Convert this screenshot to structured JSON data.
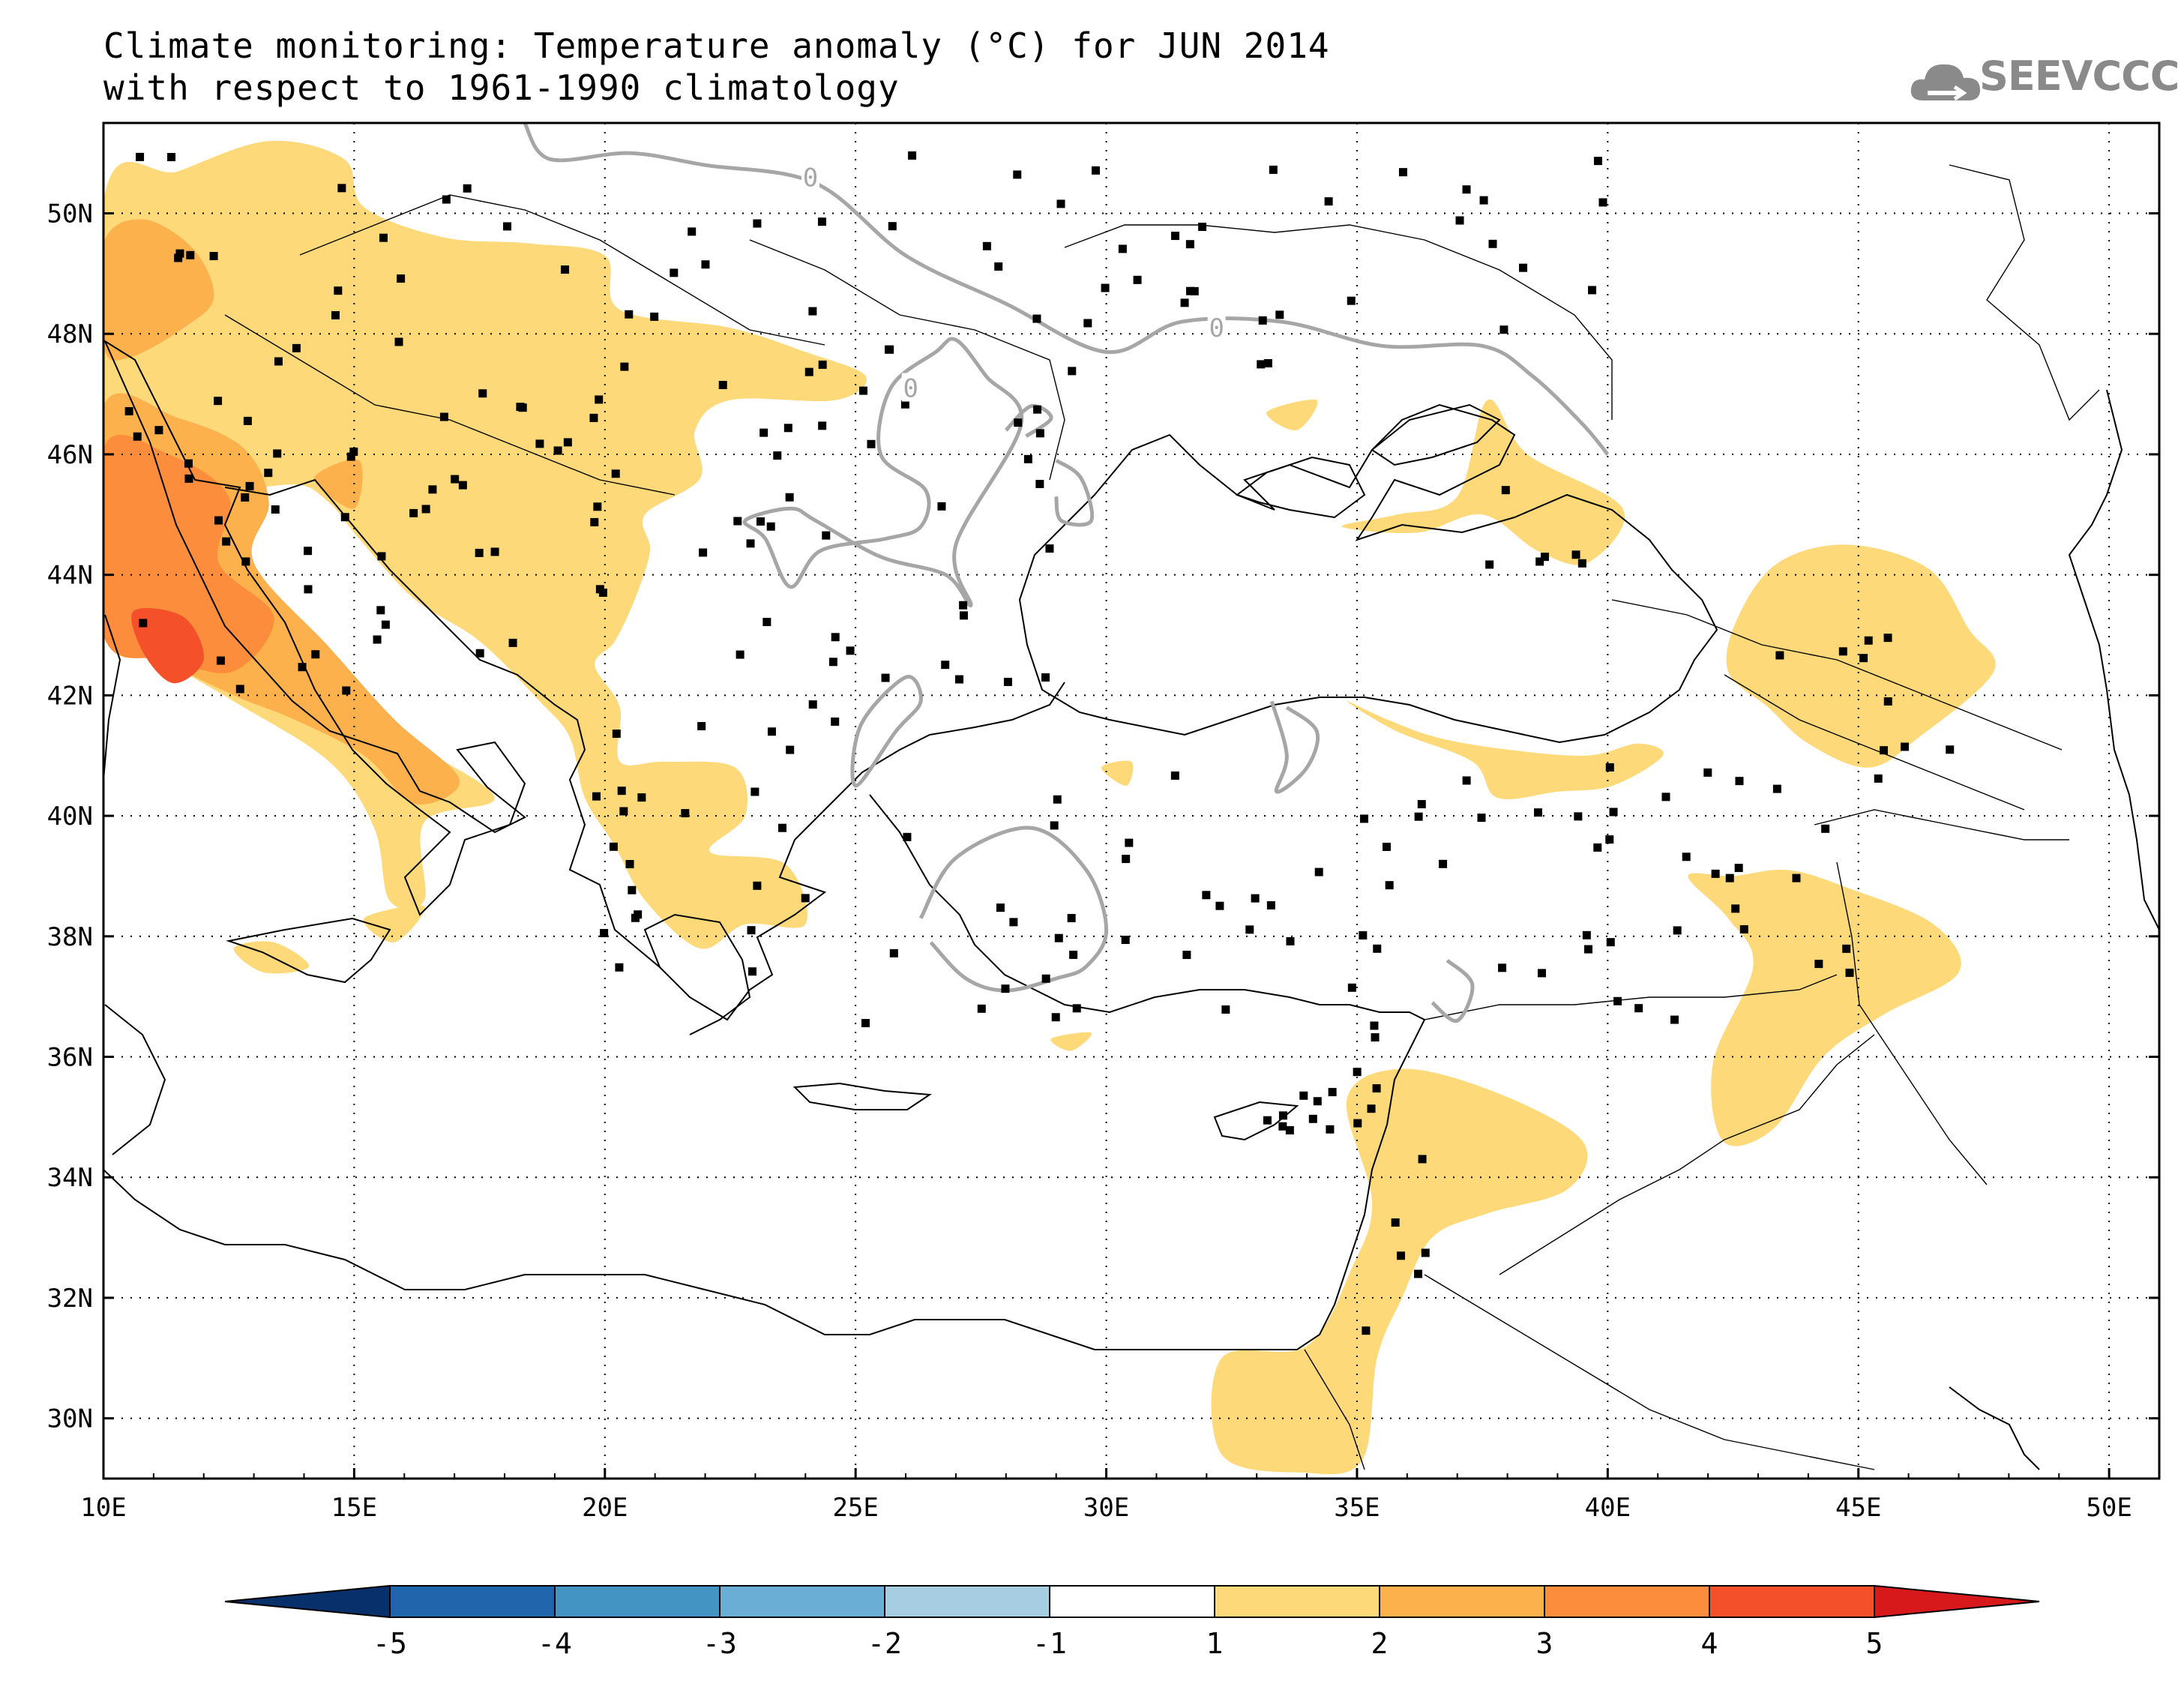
{
  "title": {
    "line1": "Climate monitoring: Temperature anomaly (°C) for JUN 2014",
    "line2": "with respect to 1961-1990 climatology"
  },
  "logo": {
    "text": "SEEVCCC",
    "icon": "cloud-icon",
    "color": "#8a8a8a"
  },
  "map": {
    "lon_range": [
      10,
      51
    ],
    "lat_range": [
      29,
      51.5
    ],
    "lon_ticks": [
      {
        "value": 10,
        "label": "10E"
      },
      {
        "value": 15,
        "label": "15E"
      },
      {
        "value": 20,
        "label": "20E"
      },
      {
        "value": 25,
        "label": "25E"
      },
      {
        "value": 30,
        "label": "30E"
      },
      {
        "value": 35,
        "label": "35E"
      },
      {
        "value": 40,
        "label": "40E"
      },
      {
        "value": 45,
        "label": "45E"
      },
      {
        "value": 50,
        "label": "50E"
      }
    ],
    "lat_ticks": [
      {
        "value": 30,
        "label": "30N"
      },
      {
        "value": 32,
        "label": "32N"
      },
      {
        "value": 34,
        "label": "34N"
      },
      {
        "value": 36,
        "label": "36N"
      },
      {
        "value": 38,
        "label": "38N"
      },
      {
        "value": 40,
        "label": "40N"
      },
      {
        "value": 42,
        "label": "42N"
      },
      {
        "value": 44,
        "label": "44N"
      },
      {
        "value": 46,
        "label": "46N"
      },
      {
        "value": 48,
        "label": "48N"
      },
      {
        "value": 50,
        "label": "50N"
      }
    ],
    "grid": "dotted",
    "zero_contour_label": "0",
    "anomaly_regions": [
      {
        "level": 1,
        "points": [
          [
            10,
            50.2
          ],
          [
            11.5,
            50.7
          ],
          [
            13.3,
            51.2
          ],
          [
            14.8,
            50.9
          ],
          [
            15.2,
            50.1
          ],
          [
            16.8,
            49.6
          ],
          [
            18.5,
            49.5
          ],
          [
            20,
            49.3
          ],
          [
            20.3,
            48.4
          ],
          [
            22.5,
            48.1
          ],
          [
            24,
            47.7
          ],
          [
            25.2,
            47.3
          ],
          [
            24.6,
            46.9
          ],
          [
            22.5,
            46.9
          ],
          [
            21.8,
            46.4
          ],
          [
            21.9,
            45.6
          ],
          [
            20.8,
            45.0
          ],
          [
            20.9,
            44.4
          ],
          [
            20.6,
            43.6
          ],
          [
            20.2,
            42.9
          ],
          [
            19.8,
            42.5
          ],
          [
            20.3,
            41.8
          ],
          [
            20.3,
            40.9
          ],
          [
            21.2,
            40.9
          ],
          [
            22.6,
            40.8
          ],
          [
            22.8,
            40.0
          ],
          [
            22.1,
            39.4
          ],
          [
            23.6,
            39.2
          ],
          [
            24.0,
            38.2
          ],
          [
            22.8,
            38.2
          ],
          [
            21.9,
            37.8
          ],
          [
            20.8,
            38.6
          ],
          [
            20.2,
            39.5
          ],
          [
            19.6,
            40.3
          ],
          [
            19.3,
            41.3
          ],
          [
            18.7,
            41.9
          ],
          [
            17.5,
            42.9
          ],
          [
            16.2,
            43.6
          ],
          [
            15.1,
            44.6
          ],
          [
            14.5,
            45.2
          ],
          [
            13.8,
            45.5
          ],
          [
            12.4,
            45.2
          ],
          [
            12.3,
            44.2
          ],
          [
            13.9,
            43.3
          ],
          [
            14.9,
            42.0
          ],
          [
            16.2,
            41.2
          ],
          [
            17.8,
            40.3
          ],
          [
            16.4,
            39.9
          ],
          [
            16.4,
            38.6
          ],
          [
            15.7,
            38.6
          ],
          [
            15.4,
            39.8
          ],
          [
            14.5,
            40.9
          ],
          [
            12.6,
            41.9
          ],
          [
            11.2,
            42.6
          ],
          [
            10.0,
            43.4
          ]
        ]
      },
      {
        "level": 1,
        "points": [
          [
            12.6,
            37.8
          ],
          [
            13.4,
            37.9
          ],
          [
            14.1,
            37.5
          ],
          [
            13.2,
            37.4
          ]
        ]
      },
      {
        "level": 1,
        "points": [
          [
            15.2,
            38.3
          ],
          [
            16.4,
            38.5
          ],
          [
            15.8,
            37.9
          ]
        ]
      },
      {
        "level": 1,
        "points": [
          [
            33.2,
            46.7
          ],
          [
            34.2,
            46.9
          ],
          [
            33.8,
            46.4
          ]
        ]
      },
      {
        "level": 1,
        "points": [
          [
            34.7,
            44.8
          ],
          [
            35.8,
            45.0
          ],
          [
            37.0,
            45.3
          ],
          [
            37.6,
            46.9
          ],
          [
            38.4,
            46.0
          ],
          [
            40.3,
            45.1
          ],
          [
            39.6,
            44.2
          ],
          [
            38.6,
            44.4
          ],
          [
            37.5,
            45.0
          ],
          [
            36.2,
            44.7
          ]
        ]
      },
      {
        "level": 1,
        "points": [
          [
            34.8,
            41.9
          ],
          [
            35.8,
            41.4
          ],
          [
            37.3,
            40.9
          ],
          [
            37.8,
            40.3
          ],
          [
            39.0,
            40.4
          ],
          [
            40.1,
            40.5
          ],
          [
            41.1,
            41.0
          ],
          [
            40.6,
            41.2
          ],
          [
            39.6,
            41.0
          ],
          [
            38.0,
            41.1
          ],
          [
            36.6,
            41.3
          ],
          [
            35.6,
            41.6
          ]
        ]
      },
      {
        "level": 1,
        "points": [
          [
            42.6,
            43.3
          ],
          [
            43.4,
            44.2
          ],
          [
            44.8,
            44.5
          ],
          [
            46.4,
            44.1
          ],
          [
            47.2,
            43.1
          ],
          [
            47.7,
            42.4
          ],
          [
            46.2,
            41.3
          ],
          [
            45.2,
            40.8
          ],
          [
            44.0,
            41.2
          ],
          [
            43.2,
            41.8
          ],
          [
            42.4,
            42.4
          ]
        ]
      },
      {
        "level": 1,
        "points": [
          [
            41.6,
            39.0
          ],
          [
            42.5,
            39.0
          ],
          [
            43.6,
            39.1
          ],
          [
            44.8,
            38.8
          ],
          [
            46.5,
            38.2
          ],
          [
            47.0,
            37.4
          ],
          [
            45.5,
            36.7
          ],
          [
            44.3,
            36.0
          ],
          [
            43.3,
            34.8
          ],
          [
            42.3,
            34.6
          ],
          [
            42.1,
            35.9
          ],
          [
            42.9,
            37.5
          ],
          [
            42.4,
            38.3
          ]
        ]
      },
      {
        "level": 1,
        "points": [
          [
            34.8,
            35.3
          ],
          [
            35.9,
            35.8
          ],
          [
            37.8,
            35.4
          ],
          [
            39.5,
            34.6
          ],
          [
            39.2,
            33.8
          ],
          [
            37.6,
            33.4
          ],
          [
            36.5,
            33.0
          ],
          [
            35.9,
            32.0
          ],
          [
            35.4,
            31.0
          ],
          [
            35.1,
            29.3
          ],
          [
            33.9,
            29.1
          ],
          [
            32.3,
            29.4
          ],
          [
            32.3,
            31.0
          ],
          [
            34.0,
            31.2
          ],
          [
            34.9,
            32.5
          ],
          [
            35.3,
            33.6
          ]
        ]
      },
      {
        "level": 1,
        "points": [
          [
            29.9,
            40.8
          ],
          [
            30.5,
            40.9
          ],
          [
            30.4,
            40.5
          ]
        ]
      },
      {
        "level": 1,
        "points": [
          [
            28.9,
            36.3
          ],
          [
            29.7,
            36.4
          ],
          [
            29.3,
            36.1
          ]
        ]
      },
      {
        "level": 2,
        "points": [
          [
            10.0,
            49.5
          ],
          [
            10.8,
            49.9
          ],
          [
            11.8,
            49.4
          ],
          [
            12.2,
            48.6
          ],
          [
            11.6,
            48.1
          ],
          [
            10.5,
            47.6
          ],
          [
            10.0,
            47.8
          ]
        ]
      },
      {
        "level": 2,
        "points": [
          [
            10.0,
            46.8
          ],
          [
            11.5,
            46.6
          ],
          [
            12.8,
            46.1
          ],
          [
            13.3,
            45.2
          ],
          [
            13.0,
            44.2
          ],
          [
            14.5,
            42.8
          ],
          [
            15.8,
            41.6
          ],
          [
            17.1,
            40.6
          ],
          [
            16.2,
            40.2
          ],
          [
            15.2,
            41.0
          ],
          [
            13.8,
            41.6
          ],
          [
            12.6,
            42.0
          ],
          [
            11.2,
            42.6
          ],
          [
            10.0,
            43.4
          ]
        ]
      },
      {
        "level": 2,
        "points": [
          [
            14.2,
            45.6
          ],
          [
            15.1,
            45.9
          ],
          [
            15.0,
            45.1
          ]
        ]
      },
      {
        "level": 3,
        "points": [
          [
            10.0,
            46.1
          ],
          [
            11.3,
            46.0
          ],
          [
            12.5,
            45.3
          ],
          [
            12.3,
            44.2
          ],
          [
            13.4,
            43.3
          ],
          [
            12.6,
            42.4
          ],
          [
            11.3,
            42.6
          ],
          [
            10.0,
            43.0
          ]
        ]
      },
      {
        "level": 4,
        "points": [
          [
            10.6,
            43.4
          ],
          [
            11.6,
            43.3
          ],
          [
            12.0,
            42.6
          ],
          [
            11.4,
            42.2
          ],
          [
            10.8,
            42.7
          ]
        ]
      }
    ],
    "zero_contours": [
      [
        [
          18.4,
          51.5
        ],
        [
          18.9,
          50.9
        ],
        [
          20.5,
          51.0
        ],
        [
          22.0,
          50.8
        ],
        [
          24.2,
          50.5
        ],
        [
          26.0,
          49.3
        ],
        [
          28.0,
          48.5
        ],
        [
          30.0,
          47.7
        ],
        [
          31.5,
          48.2
        ],
        [
          33.5,
          48.2
        ],
        [
          35.5,
          47.8
        ],
        [
          37.5,
          47.8
        ],
        [
          38.5,
          47.3
        ],
        [
          39.5,
          46.5
        ],
        [
          40.0,
          46.0
        ]
      ],
      [
        [
          26.6,
          47.7
        ],
        [
          25.7,
          47.1
        ],
        [
          25.5,
          46.0
        ],
        [
          26.4,
          45.4
        ],
        [
          26.3,
          44.8
        ],
        [
          25.6,
          44.6
        ],
        [
          24.3,
          44.4
        ],
        [
          23.7,
          43.8
        ],
        [
          23.2,
          44.6
        ],
        [
          22.8,
          44.9
        ],
        [
          23.7,
          45.1
        ],
        [
          24.2,
          44.9
        ],
        [
          25.5,
          44.3
        ],
        [
          26.8,
          44.0
        ],
        [
          27.3,
          43.5
        ],
        [
          27.0,
          44.5
        ],
        [
          28.3,
          46.5
        ],
        [
          27.6,
          47.3
        ],
        [
          27.0,
          47.9
        ],
        [
          26.6,
          47.7
        ]
      ],
      [
        [
          28.0,
          46.4
        ],
        [
          28.5,
          46.8
        ],
        [
          28.9,
          46.6
        ],
        [
          28.4,
          46.3
        ]
      ],
      [
        [
          29.0,
          45.9
        ],
        [
          29.5,
          45.6
        ],
        [
          29.7,
          44.9
        ],
        [
          29.1,
          44.9
        ],
        [
          29.0,
          45.3
        ]
      ],
      [
        [
          25.0,
          40.5
        ],
        [
          25.1,
          41.5
        ],
        [
          26.0,
          42.3
        ],
        [
          26.3,
          41.9
        ],
        [
          25.8,
          41.4
        ],
        [
          25.0,
          40.5
        ]
      ],
      [
        [
          26.3,
          38.3
        ],
        [
          27.0,
          39.3
        ],
        [
          28.5,
          39.8
        ],
        [
          29.6,
          39.1
        ],
        [
          30.0,
          38.1
        ],
        [
          29.6,
          37.5
        ],
        [
          29.0,
          37.3
        ],
        [
          28.0,
          37.1
        ],
        [
          27.2,
          37.3
        ],
        [
          26.5,
          37.9
        ]
      ],
      [
        [
          33.3,
          41.9
        ],
        [
          33.6,
          41.0
        ],
        [
          33.4,
          40.4
        ],
        [
          34.0,
          40.8
        ],
        [
          34.2,
          41.4
        ],
        [
          33.6,
          41.8
        ]
      ],
      [
        [
          36.8,
          37.6
        ],
        [
          37.3,
          37.2
        ],
        [
          37.0,
          36.6
        ],
        [
          36.5,
          36.9
        ]
      ]
    ]
  },
  "colorbar": {
    "ticks": [
      "-5",
      "-4",
      "-3",
      "-2",
      "-1",
      "1",
      "2",
      "3",
      "4",
      "5"
    ],
    "colors": [
      "#08306b",
      "#2166ac",
      "#4393c3",
      "#6aadd5",
      "#a6cde2",
      "#ffffff",
      "#fdd97a",
      "#fdb14d",
      "#fc8d3c",
      "#f4502a",
      "#d7191c"
    ]
  },
  "level_colors": {
    "1": "#fdd97a",
    "2": "#fdb14d",
    "3": "#fc8d3c",
    "4": "#f4502a"
  }
}
